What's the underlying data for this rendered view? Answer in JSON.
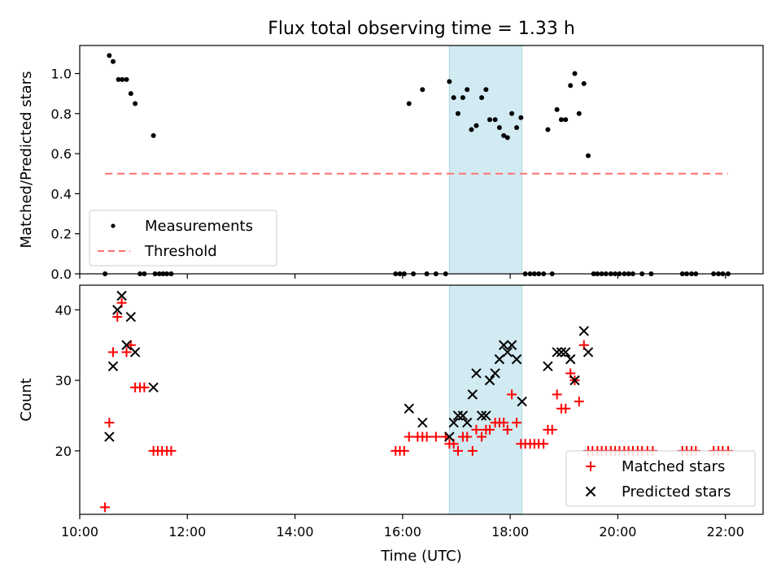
{
  "title": "Flux total observing time = 1.33 h",
  "colors": {
    "band": "#add8e6",
    "measurement": "#000000",
    "threshold": "#ff7070",
    "matched": "#ff0000",
    "predicted": "#000000"
  },
  "chart_data": [
    {
      "type": "scatter",
      "ylabel": "Matched/Predicted stars",
      "xlim": [
        10.0,
        22.7
      ],
      "ylim": [
        0.0,
        1.14
      ],
      "yticks": [
        "0.0",
        "0.2",
        "0.4",
        "0.6",
        "0.8",
        "1.0"
      ],
      "highlight_band": [
        16.87,
        18.22
      ],
      "threshold": {
        "value": 0.5,
        "x": [
          10.47,
          22.05
        ]
      },
      "legend": {
        "position": "lower-left",
        "entries": [
          "Measurements",
          "Threshold"
        ]
      },
      "series": [
        {
          "name": "Measurements",
          "points": [
            [
              10.47,
              0.0
            ],
            [
              10.55,
              1.09
            ],
            [
              10.62,
              1.06
            ],
            [
              10.72,
              0.97
            ],
            [
              10.79,
              0.97
            ],
            [
              10.87,
              0.97
            ],
            [
              10.95,
              0.9
            ],
            [
              11.03,
              0.85
            ],
            [
              11.12,
              0.0
            ],
            [
              11.2,
              0.0
            ],
            [
              11.37,
              0.69
            ],
            [
              11.4,
              0.0
            ],
            [
              11.48,
              0.0
            ],
            [
              11.55,
              0.0
            ],
            [
              11.62,
              0.0
            ],
            [
              11.7,
              0.0
            ],
            [
              15.87,
              0.0
            ],
            [
              15.95,
              0.0
            ],
            [
              16.03,
              0.0
            ],
            [
              16.12,
              0.85
            ],
            [
              16.2,
              0.0
            ],
            [
              16.37,
              0.92
            ],
            [
              16.45,
              0.0
            ],
            [
              16.62,
              0.0
            ],
            [
              16.8,
              0.0
            ],
            [
              16.87,
              0.96
            ],
            [
              16.95,
              0.88
            ],
            [
              17.03,
              0.8
            ],
            [
              17.12,
              0.88
            ],
            [
              17.2,
              0.92
            ],
            [
              17.28,
              0.72
            ],
            [
              17.37,
              0.74
            ],
            [
              17.47,
              0.88
            ],
            [
              17.55,
              0.92
            ],
            [
              17.62,
              0.77
            ],
            [
              17.72,
              0.77
            ],
            [
              17.8,
              0.73
            ],
            [
              17.88,
              0.69
            ],
            [
              17.95,
              0.68
            ],
            [
              18.03,
              0.8
            ],
            [
              18.12,
              0.73
            ],
            [
              18.2,
              0.78
            ],
            [
              18.28,
              0.0
            ],
            [
              18.37,
              0.0
            ],
            [
              18.45,
              0.0
            ],
            [
              18.53,
              0.0
            ],
            [
              18.62,
              0.0
            ],
            [
              18.7,
              0.72
            ],
            [
              18.78,
              0.0
            ],
            [
              18.87,
              0.82
            ],
            [
              18.95,
              0.77
            ],
            [
              19.03,
              0.77
            ],
            [
              19.12,
              0.94
            ],
            [
              19.2,
              1.0
            ],
            [
              19.28,
              0.8
            ],
            [
              19.37,
              0.95
            ],
            [
              19.45,
              0.59
            ],
            [
              19.55,
              0.0
            ],
            [
              19.62,
              0.0
            ],
            [
              19.7,
              0.0
            ],
            [
              19.78,
              0.0
            ],
            [
              19.87,
              0.0
            ],
            [
              19.95,
              0.0
            ],
            [
              20.03,
              0.0
            ],
            [
              20.12,
              0.0
            ],
            [
              20.2,
              0.0
            ],
            [
              20.28,
              0.0
            ],
            [
              20.45,
              0.0
            ],
            [
              20.62,
              0.0
            ],
            [
              21.2,
              0.0
            ],
            [
              21.28,
              0.0
            ],
            [
              21.37,
              0.0
            ],
            [
              21.45,
              0.0
            ],
            [
              21.78,
              0.0
            ],
            [
              21.87,
              0.0
            ],
            [
              21.95,
              0.0
            ],
            [
              22.05,
              0.0
            ]
          ]
        }
      ]
    },
    {
      "type": "scatter",
      "xlabel": "Time (UTC)",
      "ylabel": "Count",
      "xlim": [
        10.0,
        22.7
      ],
      "ylim": [
        11.0,
        43.5
      ],
      "yticks": [
        "20",
        "30",
        "40"
      ],
      "xticks": [
        "10:00",
        "12:00",
        "14:00",
        "16:00",
        "18:00",
        "20:00",
        "22:00"
      ],
      "highlight_band": [
        16.87,
        18.22
      ],
      "legend": {
        "position": "lower-right",
        "entries": [
          "Matched stars",
          "Predicted stars"
        ]
      },
      "series": [
        {
          "name": "Matched stars",
          "marker": "plus",
          "points": [
            [
              10.47,
              12
            ],
            [
              10.55,
              24
            ],
            [
              10.62,
              34
            ],
            [
              10.7,
              39
            ],
            [
              10.78,
              41
            ],
            [
              10.87,
              34
            ],
            [
              10.95,
              35
            ],
            [
              11.03,
              29
            ],
            [
              11.12,
              29
            ],
            [
              11.2,
              29
            ],
            [
              11.37,
              20
            ],
            [
              11.45,
              20
            ],
            [
              11.53,
              20
            ],
            [
              11.62,
              20
            ],
            [
              11.7,
              20
            ],
            [
              15.87,
              20
            ],
            [
              15.95,
              20
            ],
            [
              16.03,
              20
            ],
            [
              16.12,
              22
            ],
            [
              16.28,
              22
            ],
            [
              16.37,
              22
            ],
            [
              16.45,
              22
            ],
            [
              16.62,
              22
            ],
            [
              16.8,
              22
            ],
            [
              16.87,
              21
            ],
            [
              16.95,
              21
            ],
            [
              17.03,
              20
            ],
            [
              17.12,
              22
            ],
            [
              17.2,
              22
            ],
            [
              17.3,
              20
            ],
            [
              17.37,
              23
            ],
            [
              17.47,
              22
            ],
            [
              17.55,
              23
            ],
            [
              17.62,
              23
            ],
            [
              17.72,
              24
            ],
            [
              17.8,
              24
            ],
            [
              17.88,
              24
            ],
            [
              17.95,
              23
            ],
            [
              18.03,
              28
            ],
            [
              18.12,
              24
            ],
            [
              18.2,
              21
            ],
            [
              18.28,
              21
            ],
            [
              18.37,
              21
            ],
            [
              18.45,
              21
            ],
            [
              18.53,
              21
            ],
            [
              18.62,
              21
            ],
            [
              18.7,
              23
            ],
            [
              18.78,
              23
            ],
            [
              18.87,
              28
            ],
            [
              18.95,
              26
            ],
            [
              19.03,
              26
            ],
            [
              19.12,
              31
            ],
            [
              19.2,
              30
            ],
            [
              19.28,
              27
            ],
            [
              19.37,
              35
            ],
            [
              19.45,
              20
            ],
            [
              19.53,
              20
            ],
            [
              19.62,
              20
            ],
            [
              19.7,
              20
            ],
            [
              19.78,
              20
            ],
            [
              19.87,
              20
            ],
            [
              19.95,
              20
            ],
            [
              20.03,
              20
            ],
            [
              20.12,
              20
            ],
            [
              20.2,
              20
            ],
            [
              20.28,
              20
            ],
            [
              20.37,
              20
            ],
            [
              20.45,
              20
            ],
            [
              20.55,
              20
            ],
            [
              20.65,
              20
            ],
            [
              21.2,
              20
            ],
            [
              21.28,
              20
            ],
            [
              21.37,
              20
            ],
            [
              21.45,
              20
            ],
            [
              21.78,
              20
            ],
            [
              21.87,
              20
            ],
            [
              21.95,
              20
            ],
            [
              22.05,
              20
            ]
          ]
        },
        {
          "name": "Predicted stars",
          "marker": "x",
          "points": [
            [
              10.55,
              22
            ],
            [
              10.62,
              32
            ],
            [
              10.7,
              40
            ],
            [
              10.78,
              42
            ],
            [
              10.87,
              35
            ],
            [
              10.95,
              39
            ],
            [
              11.03,
              34
            ],
            [
              11.37,
              29
            ],
            [
              16.12,
              26
            ],
            [
              16.37,
              24
            ],
            [
              16.87,
              22
            ],
            [
              16.95,
              24
            ],
            [
              17.03,
              25
            ],
            [
              17.12,
              25
            ],
            [
              17.2,
              24
            ],
            [
              17.3,
              28
            ],
            [
              17.37,
              31
            ],
            [
              17.47,
              25
            ],
            [
              17.55,
              25
            ],
            [
              17.62,
              30
            ],
            [
              17.72,
              31
            ],
            [
              17.8,
              33
            ],
            [
              17.88,
              35
            ],
            [
              17.95,
              34
            ],
            [
              18.03,
              35
            ],
            [
              18.12,
              33
            ],
            [
              18.22,
              27
            ],
            [
              18.7,
              32
            ],
            [
              18.87,
              34
            ],
            [
              18.95,
              34
            ],
            [
              19.03,
              34
            ],
            [
              19.12,
              33
            ],
            [
              19.2,
              30
            ],
            [
              19.37,
              37
            ],
            [
              19.45,
              34
            ]
          ]
        }
      ]
    }
  ]
}
